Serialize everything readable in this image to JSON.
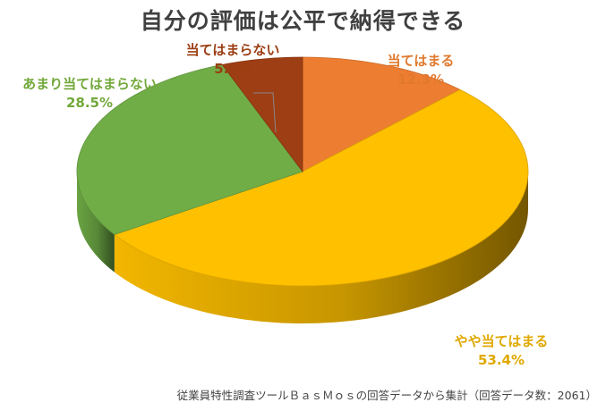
{
  "chart_data": {
    "type": "pie",
    "title": "自分の評価は公平で納得できる",
    "slices": [
      {
        "label": "当てはまる",
        "value": 12.3,
        "value_label": "12.3%",
        "color": "#ed7d31"
      },
      {
        "label": "やや当てはまる",
        "value": 53.4,
        "value_label": "53.4%",
        "color": "#ffc000"
      },
      {
        "label": "あまり当てはまらない",
        "value": 28.5,
        "value_label": "28.5%",
        "color": "#70ad47"
      },
      {
        "label": "当てはまらない",
        "value": 5.8,
        "value_label": "5.8%",
        "color": "#9e3e14"
      }
    ],
    "start": "top",
    "direction": "clockwise",
    "style": "3d"
  },
  "source_note": "従業員特性調査ツールＢａｓＭｏｓの回答データから集計（回答データ数：2061）"
}
